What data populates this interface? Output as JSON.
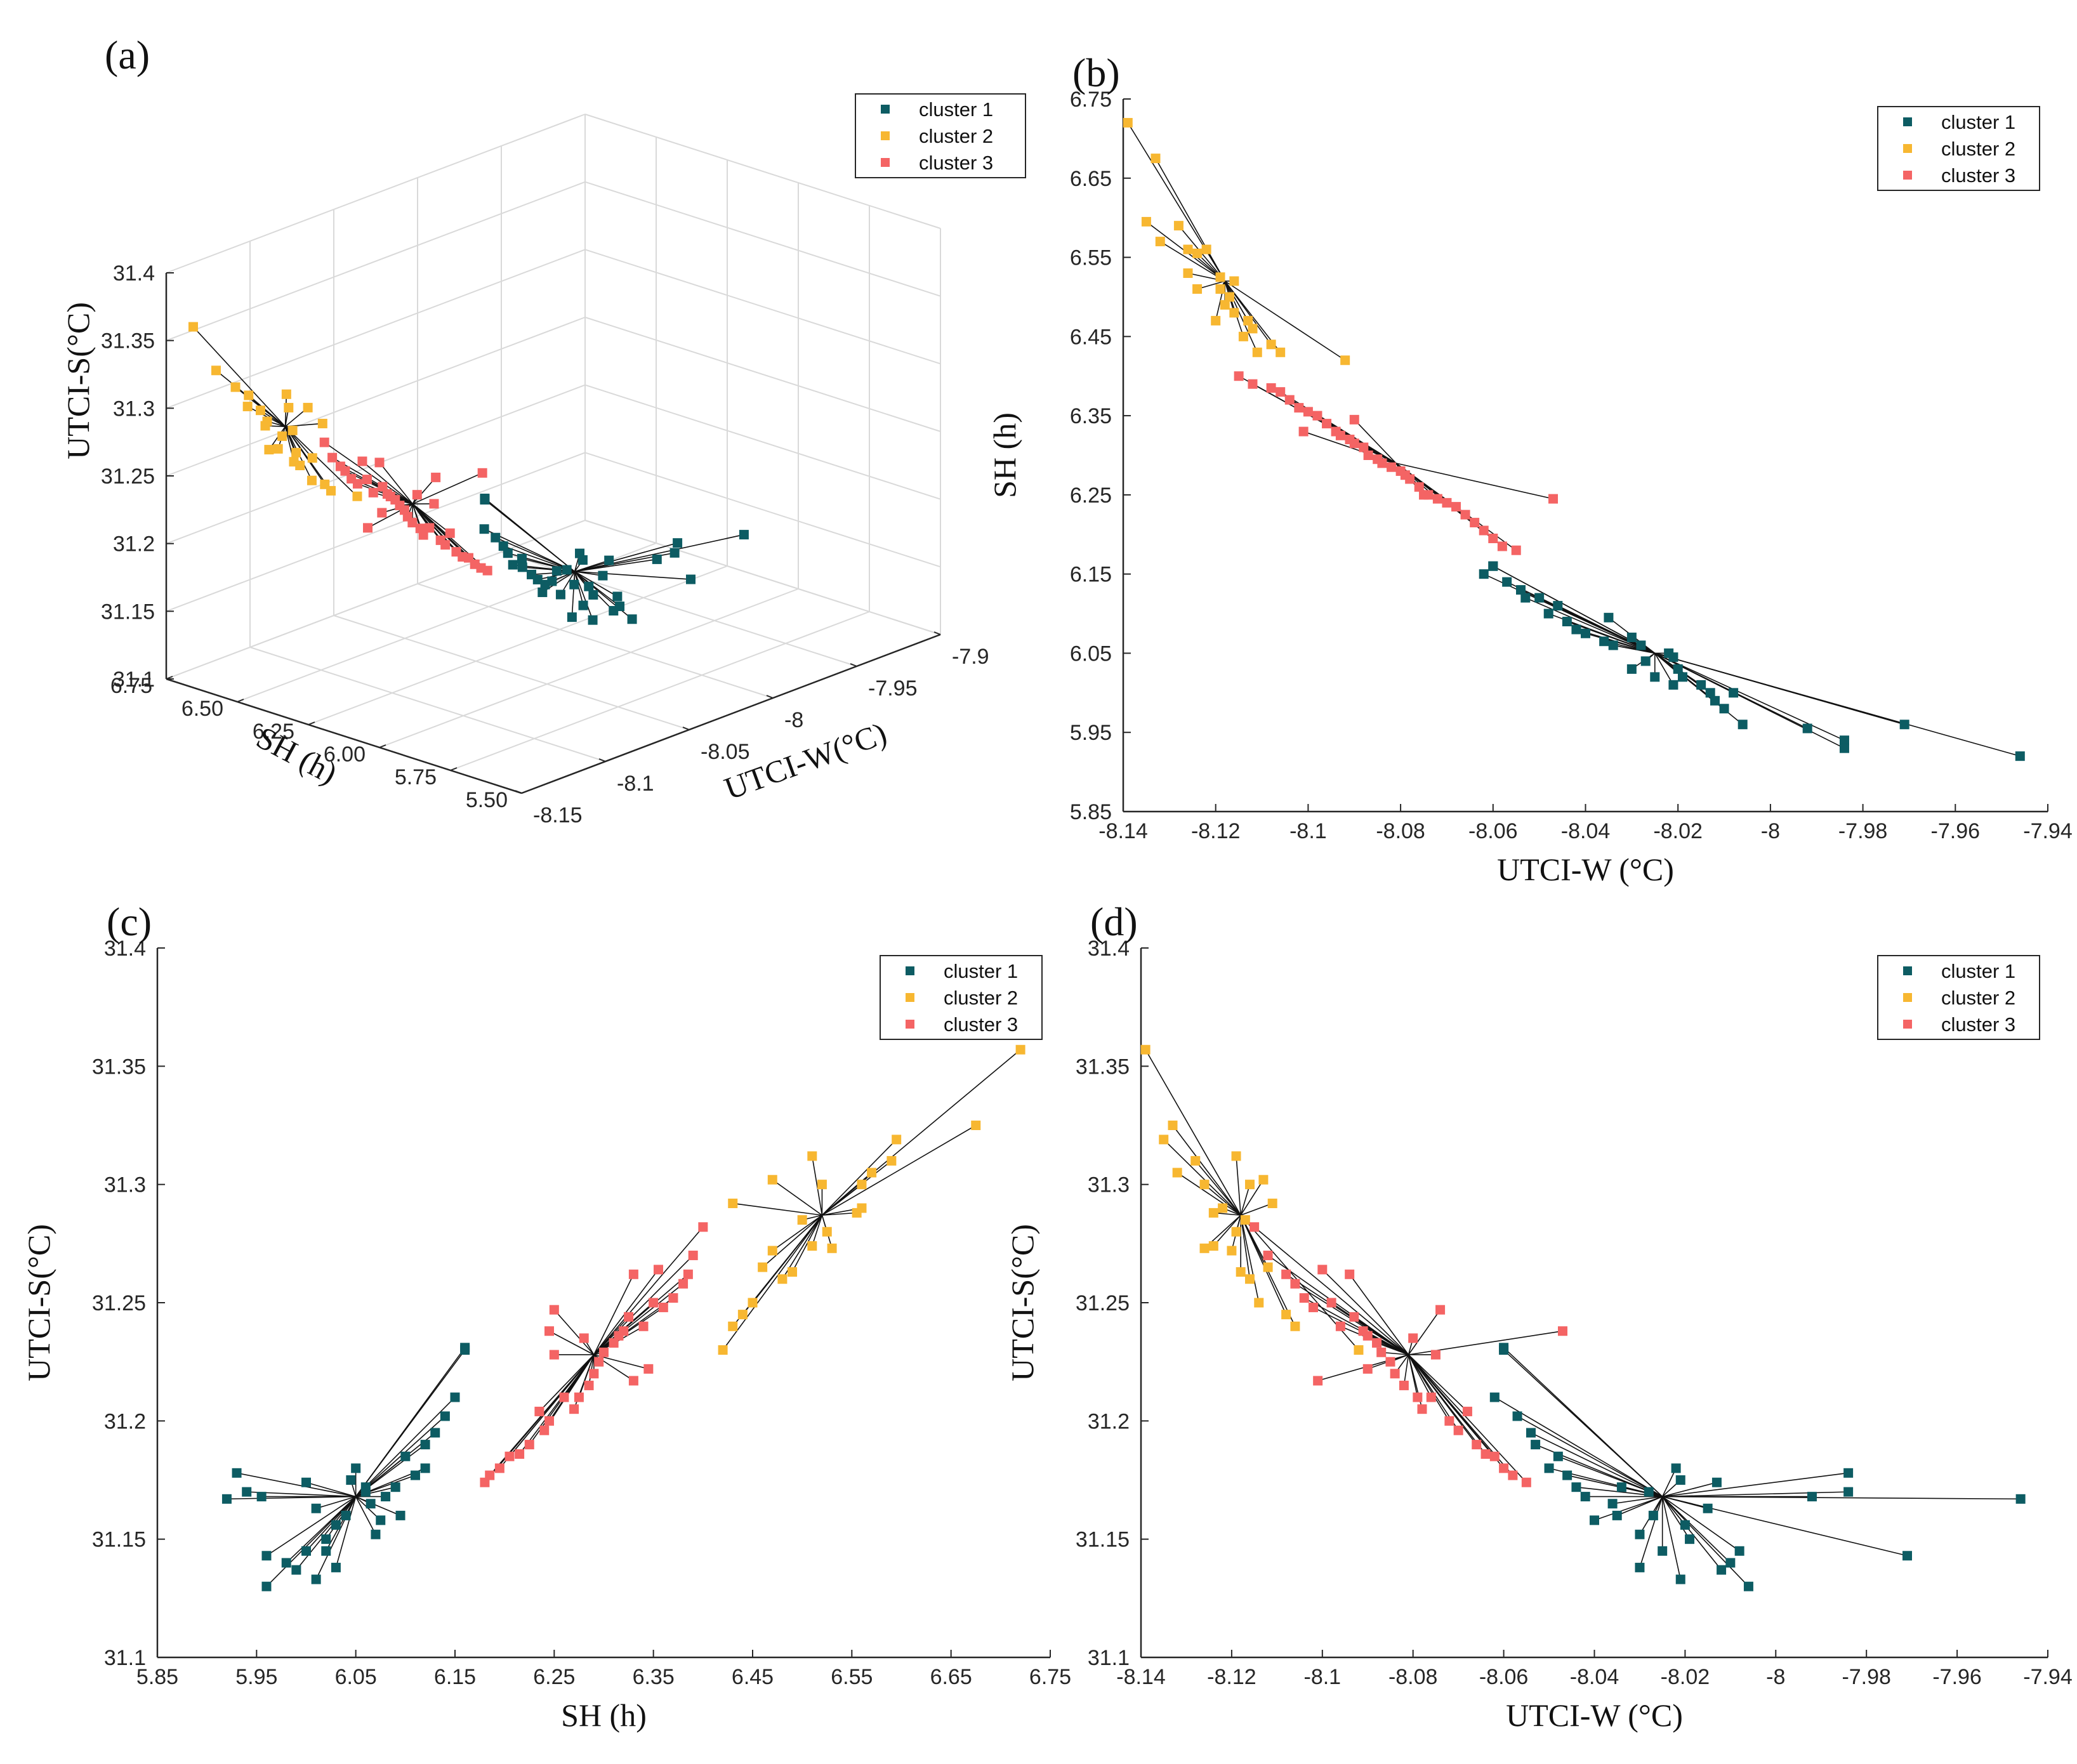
{
  "colors": {
    "cluster 1": "#0d5c63",
    "cluster 2": "#f7b731",
    "cluster 3": "#f46464",
    "line": "#111111",
    "axis": "#262626",
    "grid": "#d9d9d9"
  },
  "chart_data": [
    {
      "panel": "(a)",
      "type": "scatter",
      "view": "3d",
      "xlabel": "SH (h)",
      "ylabel": "UTCI-W(°C)",
      "zlabel": "UTCI-S(°C)",
      "x_ticks": [
        "6.75",
        "6.50",
        "6.25",
        "6.00",
        "5.75",
        "5.50"
      ],
      "y_ticks": [
        "-8.15",
        "-8.1",
        "-8.05",
        "-8",
        "-7.95",
        "-7.9"
      ],
      "z_ticks": [
        "31.1",
        "31.15",
        "31.2",
        "31.25",
        "31.3",
        "31.35",
        "31.4"
      ],
      "xlim": [
        5.5,
        6.75
      ],
      "ylim": [
        -8.15,
        -7.9
      ],
      "zlim": [
        31.1,
        31.4
      ],
      "legend": [
        "cluster 1",
        "cluster 2",
        "cluster 3"
      ],
      "legend_loc": "top-right",
      "centroids": [
        {
          "name": "cluster 1",
          "sh": 6.05,
          "w": -8.025,
          "s": 31.168
        },
        {
          "name": "cluster 2",
          "sh": 6.52,
          "w": -8.118,
          "s": 31.287
        },
        {
          "name": "cluster 3",
          "sh": 6.29,
          "w": -8.081,
          "s": 31.228
        }
      ],
      "series": [
        {
          "name": "cluster 1",
          "points": [
            {
              "sh": 6.16,
              "w": -8.06,
              "s": 31.231
            },
            {
              "sh": 6.16,
              "w": -8.06,
              "s": 31.23
            },
            {
              "sh": 6.15,
              "w": -8.062,
              "s": 31.21
            },
            {
              "sh": 6.14,
              "w": -8.057,
              "s": 31.202
            },
            {
              "sh": 6.13,
              "w": -8.054,
              "s": 31.195
            },
            {
              "sh": 6.12,
              "w": -8.053,
              "s": 31.19
            },
            {
              "sh": 6.12,
              "w": -8.05,
              "s": 31.18
            },
            {
              "sh": 6.1,
              "w": -8.048,
              "s": 31.185
            },
            {
              "sh": 6.11,
              "w": -8.046,
              "s": 31.177
            },
            {
              "sh": 6.09,
              "w": -8.044,
              "s": 31.172
            },
            {
              "sh": 6.08,
              "w": -8.042,
              "s": 31.168
            },
            {
              "sh": 6.075,
              "w": -8.04,
              "s": 31.158
            },
            {
              "sh": 6.065,
              "w": -8.036,
              "s": 31.165
            },
            {
              "sh": 6.095,
              "w": -8.035,
              "s": 31.16
            },
            {
              "sh": 6.07,
              "w": -8.03,
              "s": 31.152
            },
            {
              "sh": 6.06,
              "w": -8.028,
              "s": 31.17
            },
            {
              "sh": 6.05,
              "w": -8.022,
              "s": 31.18
            },
            {
              "sh": 6.045,
              "w": -8.021,
              "s": 31.175
            },
            {
              "sh": 6.03,
              "w": -8.02,
              "s": 31.156
            },
            {
              "sh": 6.02,
              "w": -8.019,
              "s": 31.15
            },
            {
              "sh": 6.01,
              "w": -8.015,
              "s": 31.163
            },
            {
              "sh": 6.0,
              "w": -8.013,
              "s": 31.174
            },
            {
              "sh": 5.99,
              "w": -8.012,
              "s": 31.137
            },
            {
              "sh": 5.98,
              "w": -8.01,
              "s": 31.14
            },
            {
              "sh": 6.0,
              "w": -8.008,
              "s": 31.145
            },
            {
              "sh": 5.96,
              "w": -8.006,
              "s": 31.13
            },
            {
              "sh": 5.955,
              "w": -7.992,
              "s": 31.168
            },
            {
              "sh": 5.94,
              "w": -7.984,
              "s": 31.17
            },
            {
              "sh": 5.93,
              "w": -7.984,
              "s": 31.178
            },
            {
              "sh": 5.96,
              "w": -7.971,
              "s": 31.143
            },
            {
              "sh": 5.92,
              "w": -7.946,
              "s": 31.167
            },
            {
              "sh": 6.01,
              "w": -8.021,
              "s": 31.133
            },
            {
              "sh": 6.03,
              "w": -8.03,
              "s": 31.138
            },
            {
              "sh": 6.02,
              "w": -8.025,
              "s": 31.145
            },
            {
              "sh": 6.06,
              "w": -8.034,
              "s": 31.172
            },
            {
              "sh": 6.04,
              "w": -8.027,
              "s": 31.16
            }
          ]
        },
        {
          "name": "cluster 2",
          "points": [
            {
              "sh": 6.72,
              "w": -8.139,
              "s": 31.357
            },
            {
              "sh": 6.675,
              "w": -8.133,
              "s": 31.325
            },
            {
              "sh": 6.595,
              "w": -8.135,
              "s": 31.319
            },
            {
              "sh": 6.59,
              "w": -8.128,
              "s": 31.31
            },
            {
              "sh": 6.57,
              "w": -8.132,
              "s": 31.305
            },
            {
              "sh": 6.56,
              "w": -8.126,
              "s": 31.3
            },
            {
              "sh": 6.555,
              "w": -8.124,
              "s": 31.288
            },
            {
              "sh": 6.56,
              "w": -8.122,
              "s": 31.29
            },
            {
              "sh": 6.53,
              "w": -8.126,
              "s": 31.273
            },
            {
              "sh": 6.525,
              "w": -8.119,
              "s": 31.28
            },
            {
              "sh": 6.52,
              "w": -8.116,
              "s": 31.3
            },
            {
              "sh": 6.51,
              "w": -8.124,
              "s": 31.274
            },
            {
              "sh": 6.5,
              "w": -8.117,
              "s": 31.285
            },
            {
              "sh": 6.49,
              "w": -8.118,
              "s": 31.263
            },
            {
              "sh": 6.48,
              "w": -8.116,
              "s": 31.26
            },
            {
              "sh": 6.47,
              "w": -8.12,
              "s": 31.272
            },
            {
              "sh": 6.46,
              "w": -8.112,
              "s": 31.265
            },
            {
              "sh": 6.45,
              "w": -8.114,
              "s": 31.25
            },
            {
              "sh": 6.44,
              "w": -8.108,
              "s": 31.245
            },
            {
              "sh": 6.43,
              "w": -8.106,
              "s": 31.24
            },
            {
              "sh": 6.42,
              "w": -8.092,
              "s": 31.23
            },
            {
              "sh": 6.43,
              "w": -8.111,
              "s": 31.292
            },
            {
              "sh": 6.47,
              "w": -8.113,
              "s": 31.302
            },
            {
              "sh": 6.51,
              "w": -8.119,
              "s": 31.312
            }
          ]
        },
        {
          "name": "cluster 3",
          "points": [
            {
              "sh": 6.4,
              "w": -8.115,
              "s": 31.282
            },
            {
              "sh": 6.39,
              "w": -8.112,
              "s": 31.27
            },
            {
              "sh": 6.385,
              "w": -8.108,
              "s": 31.262
            },
            {
              "sh": 6.38,
              "w": -8.106,
              "s": 31.258
            },
            {
              "sh": 6.37,
              "w": -8.104,
              "s": 31.252
            },
            {
              "sh": 6.36,
              "w": -8.102,
              "s": 31.248
            },
            {
              "sh": 6.355,
              "w": -8.1,
              "s": 31.264
            },
            {
              "sh": 6.35,
              "w": -8.098,
              "s": 31.25
            },
            {
              "sh": 6.34,
              "w": -8.096,
              "s": 31.24
            },
            {
              "sh": 6.33,
              "w": -8.094,
              "s": 31.262
            },
            {
              "sh": 6.325,
              "w": -8.093,
              "s": 31.244
            },
            {
              "sh": 6.32,
              "w": -8.091,
              "s": 31.238
            },
            {
              "sh": 6.315,
              "w": -8.09,
              "s": 31.236
            },
            {
              "sh": 6.31,
              "w": -8.088,
              "s": 31.233
            },
            {
              "sh": 6.3,
              "w": -8.087,
              "s": 31.229
            },
            {
              "sh": 6.295,
              "w": -8.085,
              "s": 31.225
            },
            {
              "sh": 6.29,
              "w": -8.084,
              "s": 31.22
            },
            {
              "sh": 6.285,
              "w": -8.082,
              "s": 31.215
            },
            {
              "sh": 6.28,
              "w": -8.08,
              "s": 31.235
            },
            {
              "sh": 6.275,
              "w": -8.079,
              "s": 31.21
            },
            {
              "sh": 6.27,
              "w": -8.078,
              "s": 31.205
            },
            {
              "sh": 6.26,
              "w": -8.076,
              "s": 31.21
            },
            {
              "sh": 6.25,
              "w": -8.074,
              "s": 31.247
            },
            {
              "sh": 6.245,
              "w": -8.072,
              "s": 31.2
            },
            {
              "sh": 6.24,
              "w": -8.07,
              "s": 31.196
            },
            {
              "sh": 6.235,
              "w": -8.068,
              "s": 31.204
            },
            {
              "sh": 6.225,
              "w": -8.066,
              "s": 31.19
            },
            {
              "sh": 6.215,
              "w": -8.064,
              "s": 31.186
            },
            {
              "sh": 6.205,
              "w": -8.062,
              "s": 31.185
            },
            {
              "sh": 6.195,
              "w": -8.06,
              "s": 31.18
            },
            {
              "sh": 6.185,
              "w": -8.058,
              "s": 31.177
            },
            {
              "sh": 6.18,
              "w": -8.055,
              "s": 31.174
            },
            {
              "sh": 6.245,
              "w": -8.047,
              "s": 31.238
            },
            {
              "sh": 6.25,
              "w": -8.075,
              "s": 31.228
            },
            {
              "sh": 6.33,
              "w": -8.101,
              "s": 31.217
            },
            {
              "sh": 6.345,
              "w": -8.09,
              "s": 31.222
            }
          ]
        }
      ]
    },
    {
      "panel": "(b)",
      "type": "scatter",
      "xlabel": "UTCI-W (°C)",
      "ylabel": "SH (h)",
      "xlim": [
        -8.14,
        -7.94
      ],
      "ylim": [
        5.85,
        6.75
      ],
      "x_ticks": [
        "-8.14",
        "-8.12",
        "-8.1",
        "-8.08",
        "-8.06",
        "-8.04",
        "-8.02",
        "-8",
        "-7.98",
        "-7.96",
        "-7.94"
      ],
      "y_ticks": [
        "5.85",
        "5.95",
        "6.05",
        "6.15",
        "6.25",
        "6.35",
        "6.45",
        "6.55",
        "6.65",
        "6.75"
      ],
      "legend": [
        "cluster 1",
        "cluster 2",
        "cluster 3"
      ],
      "legend_loc": "top-right"
    },
    {
      "panel": "(c)",
      "type": "scatter",
      "xlabel": "SH (h)",
      "ylabel": "UTCI-S(°C)",
      "xlim": [
        5.85,
        6.75
      ],
      "ylim": [
        31.1,
        31.4
      ],
      "x_ticks": [
        "5.85",
        "5.95",
        "6.05",
        "6.15",
        "6.25",
        "6.35",
        "6.45",
        "6.55",
        "6.65",
        "6.75"
      ],
      "y_ticks": [
        "31.1",
        "31.15",
        "31.2",
        "31.25",
        "31.3",
        "31.35",
        "31.4"
      ],
      "legend": [
        "cluster 1",
        "cluster 2",
        "cluster 3"
      ],
      "legend_loc": "top-right"
    },
    {
      "panel": "(d)",
      "type": "scatter",
      "xlabel": "UTCI-W (°C)",
      "ylabel": "UTCI-S(°C)",
      "xlim": [
        -8.14,
        -7.94
      ],
      "ylim": [
        31.1,
        31.4
      ],
      "x_ticks": [
        "-8.14",
        "-8.12",
        "-8.1",
        "-8.08",
        "-8.06",
        "-8.04",
        "-8.02",
        "-8",
        "-7.98",
        "-7.96",
        "-7.94"
      ],
      "y_ticks": [
        "31.1",
        "31.15",
        "31.2",
        "31.25",
        "31.3",
        "31.35",
        "31.4"
      ],
      "legend": [
        "cluster 1",
        "cluster 2",
        "cluster 3"
      ],
      "legend_loc": "top-right"
    }
  ]
}
